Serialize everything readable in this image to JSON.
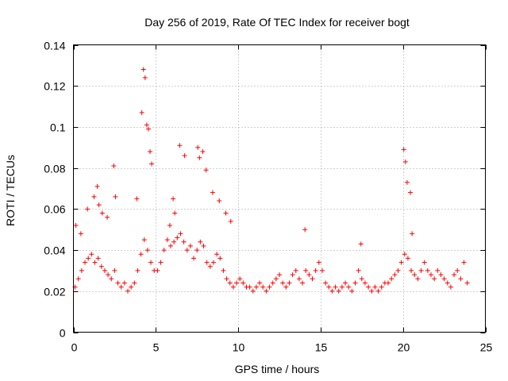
{
  "chart_data": {
    "type": "scatter",
    "title": "Day 256 of 2019, Rate Of TEC Index for receiver bogt",
    "xlabel": "GPS time / hours",
    "ylabel": "ROTI / TECUs",
    "xlim": [
      0,
      25
    ],
    "ylim": [
      0,
      0.14
    ],
    "xticks": [
      0,
      5,
      10,
      15,
      20,
      25
    ],
    "xtick_labels": [
      "0",
      "5",
      "10",
      "15",
      "20",
      "25"
    ],
    "yticks": [
      0,
      0.02,
      0.04,
      0.06,
      0.08,
      0.1,
      0.12,
      0.14
    ],
    "ytick_labels": [
      "0",
      "0.02",
      "0.04",
      "0.06",
      "0.08",
      "0.1",
      "0.12",
      "0.14"
    ],
    "grid": true,
    "marker": "+",
    "color": "#ff0000",
    "series": [
      {
        "name": "ROTI",
        "x": [
          0.1,
          0.3,
          0.5,
          0.7,
          0.9,
          1.1,
          1.3,
          1.5,
          1.7,
          1.9,
          2.1,
          2.3,
          2.5,
          2.7,
          2.9,
          3.1,
          3.3,
          3.5,
          3.7,
          3.9,
          4.1,
          4.3,
          4.5,
          4.7,
          4.9,
          5.1,
          5.3,
          5.5,
          5.7,
          5.9,
          6.1,
          6.3,
          6.5,
          6.7,
          6.9,
          7.1,
          7.3,
          7.5,
          7.7,
          7.9,
          8.1,
          8.3,
          8.5,
          8.7,
          8.9,
          9.1,
          9.3,
          9.5,
          9.7,
          9.9,
          10.1,
          10.3,
          10.5,
          10.7,
          10.9,
          11.1,
          11.3,
          11.5,
          11.7,
          11.9,
          12.1,
          12.3,
          12.5,
          12.7,
          12.9,
          13.1,
          13.3,
          13.5,
          13.7,
          13.9,
          14.1,
          14.3,
          14.5,
          14.7,
          14.9,
          15.1,
          15.3,
          15.5,
          15.7,
          15.9,
          16.1,
          16.3,
          16.5,
          16.7,
          16.9,
          17.1,
          17.3,
          17.5,
          17.7,
          17.9,
          18.1,
          18.3,
          18.5,
          18.7,
          18.9,
          19.1,
          19.3,
          19.5,
          19.7,
          19.9,
          20.1,
          20.3,
          20.5,
          20.7,
          20.9,
          21.1,
          21.3,
          21.5,
          21.7,
          21.9,
          22.1,
          22.3,
          22.5,
          22.7,
          22.9,
          23.1,
          23.3,
          23.5,
          23.7,
          23.9,
          0.15,
          0.45,
          0.85,
          1.25,
          1.45,
          1.55,
          1.75,
          2.05,
          2.45,
          2.55,
          3.85,
          4.15,
          4.25,
          4.35,
          4.45,
          4.55,
          4.65,
          4.75,
          5.85,
          6.05,
          6.15,
          6.45,
          6.75,
          7.55,
          7.65,
          7.85,
          8.05,
          8.45,
          8.85,
          9.25,
          9.55,
          14.05,
          17.45,
          20.05,
          20.15,
          20.25,
          20.45,
          20.55
        ],
        "y": [
          0.022,
          0.026,
          0.03,
          0.034,
          0.036,
          0.038,
          0.034,
          0.036,
          0.032,
          0.03,
          0.028,
          0.026,
          0.03,
          0.024,
          0.022,
          0.024,
          0.02,
          0.022,
          0.024,
          0.03,
          0.038,
          0.045,
          0.04,
          0.034,
          0.03,
          0.03,
          0.034,
          0.04,
          0.045,
          0.042,
          0.044,
          0.046,
          0.048,
          0.044,
          0.04,
          0.042,
          0.036,
          0.04,
          0.044,
          0.042,
          0.034,
          0.032,
          0.034,
          0.038,
          0.036,
          0.03,
          0.026,
          0.024,
          0.022,
          0.024,
          0.026,
          0.024,
          0.022,
          0.022,
          0.02,
          0.022,
          0.024,
          0.022,
          0.02,
          0.022,
          0.024,
          0.026,
          0.028,
          0.024,
          0.022,
          0.024,
          0.028,
          0.03,
          0.026,
          0.024,
          0.03,
          0.028,
          0.026,
          0.03,
          0.034,
          0.03,
          0.024,
          0.022,
          0.02,
          0.022,
          0.02,
          0.022,
          0.024,
          0.022,
          0.02,
          0.024,
          0.03,
          0.026,
          0.024,
          0.022,
          0.02,
          0.022,
          0.02,
          0.022,
          0.024,
          0.024,
          0.026,
          0.028,
          0.03,
          0.034,
          0.038,
          0.036,
          0.03,
          0.028,
          0.026,
          0.03,
          0.034,
          0.03,
          0.028,
          0.026,
          0.03,
          0.028,
          0.026,
          0.024,
          0.022,
          0.028,
          0.03,
          0.026,
          0.034,
          0.024,
          0.052,
          0.048,
          0.06,
          0.066,
          0.071,
          0.062,
          0.058,
          0.056,
          0.081,
          0.066,
          0.065,
          0.107,
          0.128,
          0.124,
          0.101,
          0.099,
          0.088,
          0.082,
          0.052,
          0.065,
          0.058,
          0.091,
          0.086,
          0.09,
          0.085,
          0.088,
          0.079,
          0.068,
          0.064,
          0.058,
          0.054,
          0.05,
          0.043,
          0.089,
          0.083,
          0.073,
          0.068,
          0.048
        ]
      }
    ]
  }
}
